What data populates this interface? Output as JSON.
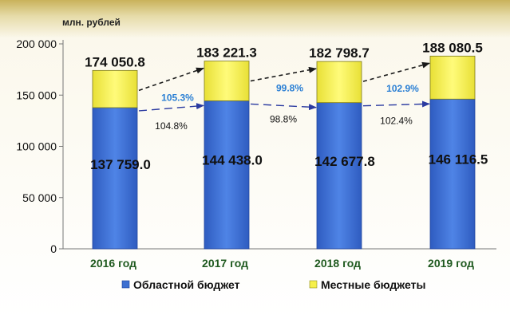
{
  "chart_data": {
    "type": "bar",
    "stacked": true,
    "ylabel": "млн. рублей",
    "ylim": [
      0,
      200000
    ],
    "yticks": [
      0,
      50000,
      100000,
      150000,
      200000
    ],
    "ytick_labels": [
      "0",
      "50 000",
      "100 000",
      "150 000",
      "200 000"
    ],
    "categories": [
      "2016 год",
      "2017 год",
      "2018 год",
      "2019 год"
    ],
    "series": [
      {
        "name": "Областной бюджет",
        "values": [
          137759.0,
          144438.0,
          142677.8,
          146116.5
        ],
        "labels": [
          "137 759.0",
          "144 438.0",
          "142 677.8",
          "146 116.5"
        ],
        "color": "#3d6fd1"
      },
      {
        "name": "Местные бюджеты",
        "values": [
          36291.8,
          38783.3,
          40120.9,
          41964.0
        ],
        "color": "#f6f04a"
      }
    ],
    "totals": [
      174050.8,
      183221.3,
      182798.7,
      188080.5
    ],
    "total_labels": [
      "174 050.8",
      "183 221.3",
      "182 798.7",
      "188 080.5"
    ],
    "growth_total": [
      "105.3%",
      "99.8%",
      "102.9%"
    ],
    "growth_regional": [
      "104.8%",
      "98.8%",
      "102.4%"
    ],
    "legend_position": "bottom",
    "grid": false,
    "colors": {
      "total_arrow": "#1a1a1a",
      "regional_arrow": "#2a3aa0",
      "total_growth_text": "#2a7fd4",
      "category_text": "#1f5a1f"
    }
  }
}
